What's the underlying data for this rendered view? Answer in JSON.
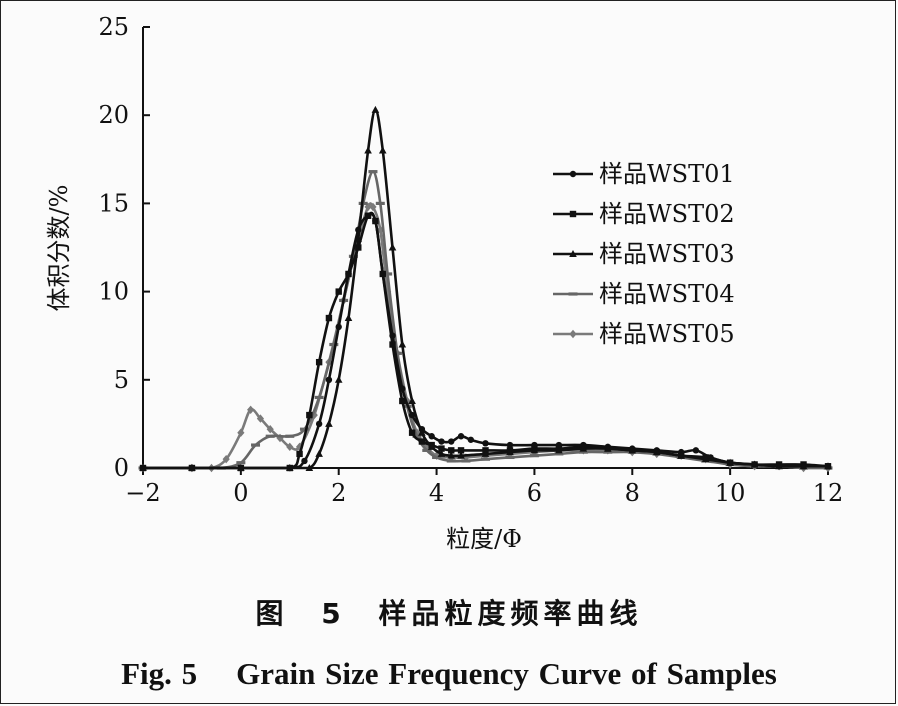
{
  "chart_data": {
    "type": "line",
    "title": "",
    "xlabel": "粒度/Φ",
    "ylabel": "体积分数/%",
    "xlim": [
      -2,
      12
    ],
    "ylim": [
      0,
      25
    ],
    "xticks": [
      -2,
      0,
      2,
      4,
      6,
      8,
      10,
      12
    ],
    "yticks": [
      0,
      5,
      10,
      15,
      20,
      25
    ],
    "xtick_labels": [
      "−2",
      "0",
      "2",
      "4",
      "6",
      "8",
      "10",
      "12"
    ],
    "ytick_labels": [
      "0",
      "5",
      "10",
      "15",
      "20",
      "25"
    ],
    "legend_position": "right",
    "series": [
      {
        "name": "样品WST01",
        "color": "#111111",
        "marker": "circle",
        "x": [
          -2,
          -1,
          0,
          1,
          1.3,
          1.6,
          1.8,
          2.0,
          2.2,
          2.4,
          2.6,
          2.75,
          2.9,
          3.1,
          3.3,
          3.5,
          3.7,
          3.9,
          4.1,
          4.3,
          4.5,
          4.7,
          5,
          5.5,
          6,
          6.5,
          7,
          7.5,
          8,
          8.5,
          9,
          9.3,
          9.6,
          10,
          10.5,
          11,
          11.5,
          12
        ],
        "y": [
          0,
          0,
          0,
          0,
          0.4,
          2.5,
          5.0,
          8.0,
          11.0,
          13.5,
          14.3,
          14.0,
          11.0,
          7.5,
          4.5,
          3.0,
          2.2,
          1.8,
          1.5,
          1.5,
          1.8,
          1.6,
          1.4,
          1.3,
          1.3,
          1.3,
          1.3,
          1.2,
          1.1,
          1.0,
          0.9,
          1.0,
          0.6,
          0.3,
          0.2,
          0.1,
          0.1,
          0.1
        ]
      },
      {
        "name": "样品WST02",
        "color": "#111111",
        "marker": "square",
        "x": [
          -2,
          -1,
          0,
          1,
          1.2,
          1.4,
          1.6,
          1.8,
          2.0,
          2.2,
          2.4,
          2.6,
          2.75,
          2.9,
          3.1,
          3.3,
          3.5,
          3.7,
          3.9,
          4.1,
          4.3,
          4.5,
          5,
          5.5,
          6,
          6.5,
          7,
          7.5,
          8,
          8.5,
          9,
          9.5,
          10,
          10.5,
          11,
          11.5,
          12
        ],
        "y": [
          0,
          0,
          0,
          0,
          0.8,
          3.0,
          6.0,
          8.5,
          10.0,
          11.0,
          12.5,
          14.3,
          14.0,
          11.0,
          7.0,
          3.8,
          2.0,
          1.5,
          1.3,
          1.1,
          1.0,
          1.0,
          1.0,
          1.0,
          1.1,
          1.1,
          1.2,
          1.1,
          1.0,
          0.9,
          0.7,
          0.6,
          0.3,
          0.2,
          0.2,
          0.2,
          0.1
        ]
      },
      {
        "name": "样品WST03",
        "color": "#111111",
        "marker": "triangle",
        "x": [
          -2,
          -1,
          0,
          1,
          1.4,
          1.6,
          1.8,
          2.0,
          2.2,
          2.4,
          2.6,
          2.75,
          2.9,
          3.1,
          3.3,
          3.5,
          3.7,
          3.9,
          4.1,
          4.3,
          4.5,
          5,
          5.5,
          6,
          6.5,
          7,
          7.5,
          8,
          8.5,
          9,
          9.5,
          10,
          10.5,
          11,
          11.5,
          12
        ],
        "y": [
          0,
          0,
          0,
          0,
          0,
          0.8,
          2.5,
          5.0,
          8.5,
          13.0,
          18.0,
          20.3,
          18.0,
          12.5,
          7.0,
          3.8,
          2.0,
          1.2,
          0.8,
          0.7,
          0.7,
          0.8,
          0.9,
          1.0,
          1.0,
          1.1,
          1.1,
          1.0,
          0.9,
          0.7,
          0.5,
          0.3,
          0.2,
          0.1,
          0.1,
          0.1
        ]
      },
      {
        "name": "样品WST04",
        "color": "#666666",
        "marker": "dash",
        "x": [
          -2,
          -1,
          -0.4,
          0,
          0.3,
          0.6,
          1.0,
          1.3,
          1.6,
          1.9,
          2.1,
          2.3,
          2.5,
          2.7,
          2.85,
          3.0,
          3.2,
          3.4,
          3.6,
          3.8,
          4.0,
          4.3,
          4.6,
          5,
          5.5,
          6,
          6.5,
          7,
          7.5,
          8,
          8.5,
          9,
          9.5,
          10,
          10.5,
          11,
          11.5,
          12
        ],
        "y": [
          0,
          0,
          0,
          0.3,
          1.3,
          1.8,
          1.8,
          2.2,
          4.0,
          7.0,
          9.5,
          12.0,
          15.0,
          16.8,
          15.0,
          11.0,
          6.5,
          3.5,
          1.8,
          1.0,
          0.6,
          0.4,
          0.4,
          0.5,
          0.6,
          0.7,
          0.8,
          0.9,
          0.9,
          0.9,
          0.8,
          0.6,
          0.4,
          0.2,
          0.1,
          0.1,
          0.0,
          0.0
        ]
      },
      {
        "name": "样品WST05",
        "color": "#7a7a7a",
        "marker": "diamond",
        "x": [
          -2,
          -1,
          -0.6,
          -0.3,
          0,
          0.2,
          0.4,
          0.6,
          0.8,
          1.0,
          1.2,
          1.5,
          1.8,
          2.1,
          2.4,
          2.6,
          2.7,
          2.85,
          3.0,
          3.2,
          3.4,
          3.6,
          3.8,
          4.0,
          4.3,
          4.6,
          5,
          5.5,
          6,
          6.5,
          7,
          7.5,
          8,
          8.5,
          9,
          9.5,
          10,
          10.5,
          11,
          11.5,
          12
        ],
        "y": [
          0,
          0,
          0,
          0.5,
          2.0,
          3.3,
          2.8,
          2.2,
          1.7,
          1.2,
          1.2,
          3.0,
          6.0,
          9.5,
          13.0,
          14.8,
          14.8,
          13.5,
          10.0,
          6.5,
          3.8,
          2.0,
          1.2,
          0.7,
          0.6,
          0.6,
          0.7,
          0.8,
          0.9,
          1.0,
          1.0,
          1.0,
          0.9,
          0.8,
          0.7,
          0.5,
          0.2,
          0.1,
          0.1,
          0.0,
          0.0
        ]
      }
    ]
  },
  "caption": {
    "cn": "图 5   样品粒度频率曲线",
    "en": "Fig. 5    Grain Size Frequency Curve of Samples"
  }
}
